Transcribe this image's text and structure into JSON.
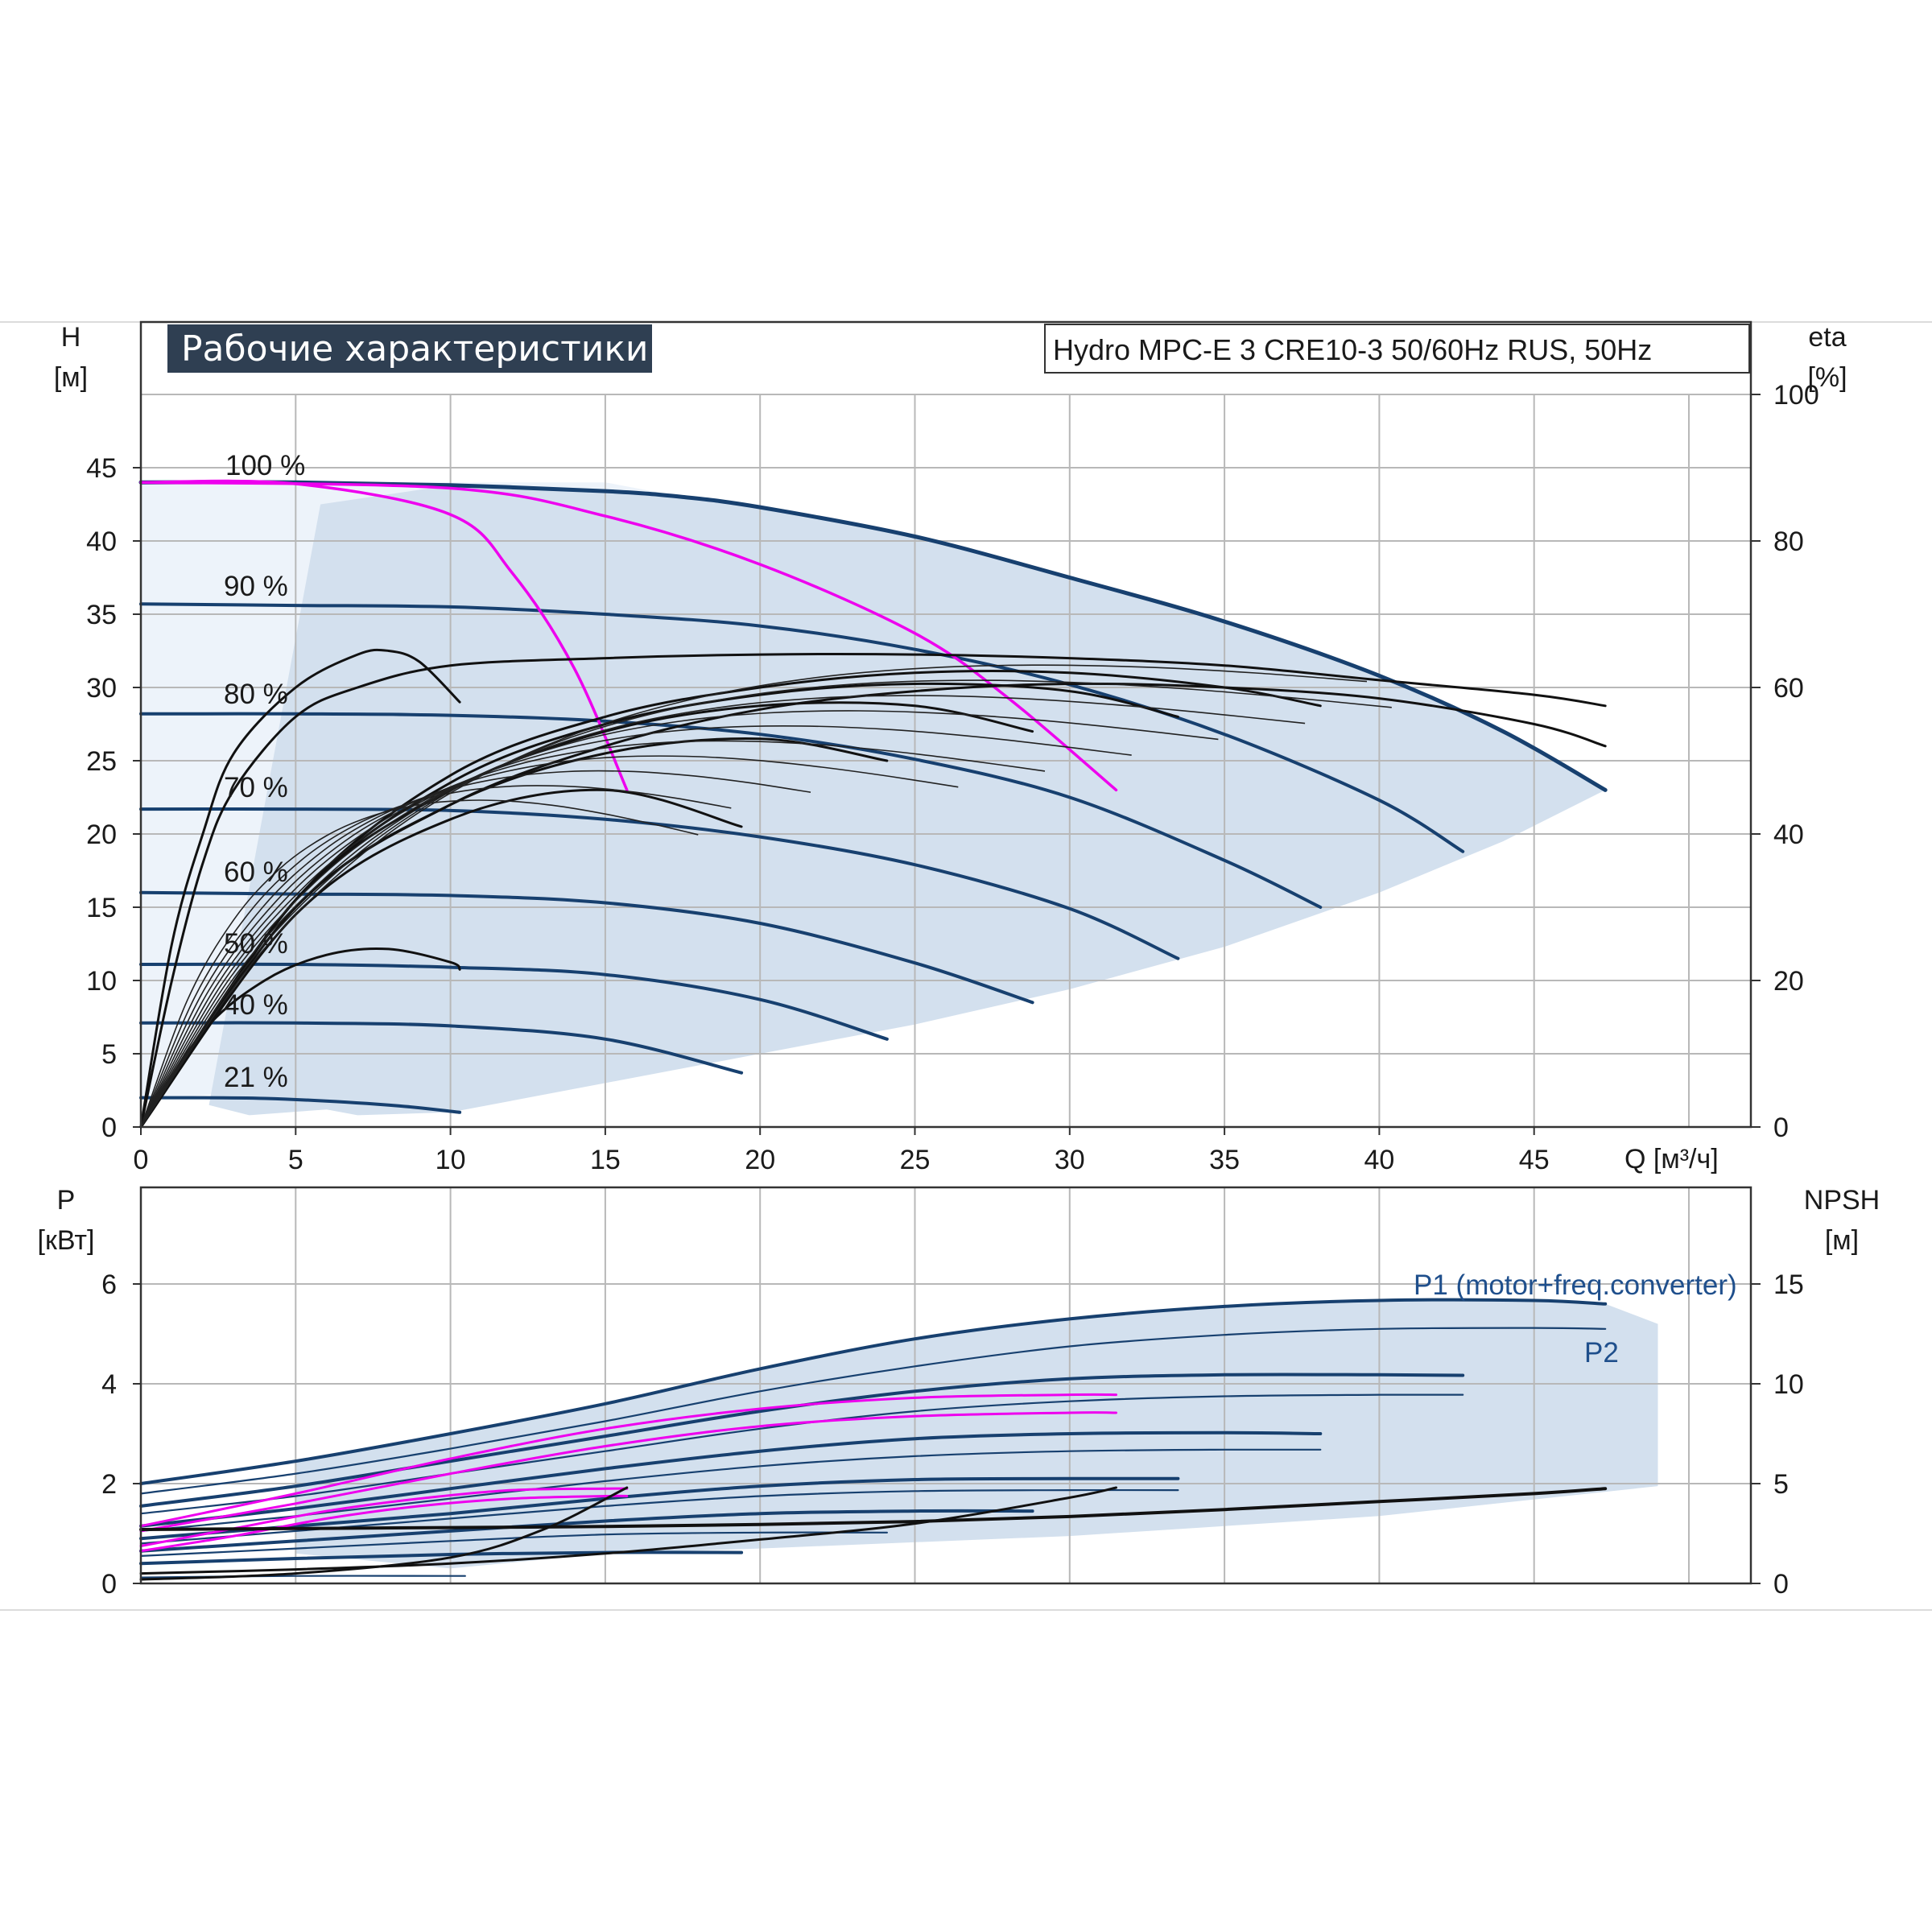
{
  "header": {
    "title": "Рабочие характеристики",
    "model": "Hydro MPC-E 3 CRE10-3 50/60Hz RUS, 50Hz"
  },
  "colors": {
    "curve": "#17406f",
    "curve_thin": "#2a4f7a",
    "magenta": "#ee00ee",
    "efficiency": "#111111",
    "shade": "#d3e0ee",
    "shade_light": "#edf3fa",
    "grid": "#b8b8b8",
    "title_bg": "#2f3f52"
  },
  "top_axes": {
    "left_label": "H",
    "left_unit": "[м]",
    "right_label": "eta",
    "right_unit": "[%]",
    "x_label": "Q [м³/ч]",
    "x_ticks": [
      "0",
      "5",
      "10",
      "15",
      "20",
      "25",
      "30",
      "35",
      "40",
      "45"
    ],
    "y_ticks": [
      "0",
      "5",
      "10",
      "15",
      "20",
      "25",
      "30",
      "35",
      "40",
      "45"
    ],
    "right_ticks": [
      "0",
      "20",
      "40",
      "60",
      "80",
      "100"
    ]
  },
  "bottom_axes": {
    "left_label": "P",
    "left_unit": "[кВт]",
    "right_label": "NPSH",
    "right_unit": "[м]",
    "y_ticks": [
      "0",
      "2",
      "4",
      "6"
    ],
    "right_ticks": [
      "0",
      "5",
      "10",
      "15"
    ]
  },
  "speed_labels": [
    "100 %",
    "90 %",
    "80 %",
    "70 %",
    "60 %",
    "50 %",
    "40 %",
    "21 %"
  ],
  "power_legend": {
    "p1": "P1 (motor+freq.converter)",
    "p2": "P2"
  },
  "chart_data": [
    {
      "type": "line",
      "xlabel": "Q [м³/ч]",
      "ylabel": "H [м]",
      "y2label": "eta [%]",
      "xlim": [
        0,
        52
      ],
      "ylim": [
        0,
        50
      ],
      "y2lim": [
        0,
        100
      ],
      "grid": true,
      "series": [
        {
          "name": "100 %",
          "x": [
            0,
            5,
            10,
            15,
            17.5,
            20,
            25,
            30,
            35,
            40,
            44,
            47.3
          ],
          "y": [
            44.0,
            44.0,
            43.8,
            43.4,
            43.0,
            42.3,
            40.3,
            37.5,
            34.5,
            30.8,
            27.0,
            23.0
          ]
        },
        {
          "name": "90 %",
          "x": [
            0,
            5,
            10,
            15,
            20,
            25,
            30,
            35,
            40,
            42.7
          ],
          "y": [
            35.7,
            35.6,
            35.5,
            35.0,
            34.2,
            32.6,
            30.2,
            26.8,
            22.3,
            18.8
          ]
        },
        {
          "name": "80 %",
          "x": [
            0,
            5,
            10,
            15,
            20,
            25,
            30,
            35,
            38.1
          ],
          "y": [
            28.2,
            28.2,
            28.1,
            27.7,
            26.8,
            25.1,
            22.5,
            18.2,
            15.0
          ]
        },
        {
          "name": "70 %",
          "x": [
            0,
            5,
            10,
            15,
            20,
            25,
            30,
            33.5
          ],
          "y": [
            21.7,
            21.7,
            21.6,
            21.0,
            19.8,
            17.9,
            14.9,
            11.5
          ]
        },
        {
          "name": "60 %",
          "x": [
            0,
            5,
            10,
            15,
            20,
            25,
            28.8
          ],
          "y": [
            16.0,
            15.9,
            15.8,
            15.3,
            13.9,
            11.2,
            8.5
          ]
        },
        {
          "name": "50 %",
          "x": [
            0,
            5,
            10,
            15,
            20,
            24.1
          ],
          "y": [
            11.1,
            11.1,
            10.9,
            10.4,
            8.7,
            6.0
          ]
        },
        {
          "name": "40 %",
          "x": [
            0,
            5,
            10,
            15,
            19.4
          ],
          "y": [
            7.1,
            7.1,
            6.9,
            6.0,
            3.7
          ]
        },
        {
          "name": "21 %",
          "x": [
            0,
            4,
            8,
            10.3
          ],
          "y": [
            2.0,
            1.95,
            1.5,
            1.0
          ]
        },
        {
          "x": [
            0,
            5,
            10,
            12,
            14,
            15.7
          ],
          "y": [
            44.0,
            43.9,
            41.8,
            37.8,
            31.3,
            23.0
          ]
        },
        {
          "x": [
            0,
            10,
            15,
            20,
            25,
            28,
            31.5
          ],
          "y": [
            44.0,
            43.6,
            41.7,
            38.4,
            33.7,
            29.3,
            23.0
          ]
        },
        {
          "x": [
            0,
            1,
            2,
            3,
            5,
            7,
            10,
            15,
            20,
            25,
            30,
            35,
            40,
            45,
            47.3
          ],
          "y2": [
            0,
            20,
            36,
            46,
            56,
            60,
            63,
            64,
            64.5,
            64.5,
            64,
            63,
            61,
            59,
            57.5
          ]
        },
        {
          "x": [
            0,
            5,
            10,
            15,
            20,
            25,
            30,
            35,
            40,
            45,
            47.3
          ],
          "y2": [
            0,
            30,
            44,
            52,
            57,
            59.5,
            60.5,
            60,
            58.5,
            55,
            52
          ]
        },
        {
          "x": [
            0,
            2,
            4,
            6,
            8,
            10,
            10.3
          ],
          "y2": [
            0,
            13,
            20,
            23.5,
            24.3,
            22.5,
            21.5
          ]
        },
        {
          "x": [
            0,
            1,
            2,
            3,
            5,
            7,
            8,
            9,
            10.3
          ],
          "y2": [
            0,
            25,
            40,
            51,
            60,
            64.5,
            65,
            63.5,
            58
          ]
        },
        {
          "x": [
            0,
            5,
            10,
            15,
            19.4
          ],
          "y2": [
            0,
            29,
            42,
            46,
            41
          ]
        },
        {
          "x": [
            0,
            5,
            10,
            15,
            20,
            24.1
          ],
          "y2": [
            0,
            30,
            44,
            51,
            53,
            50
          ]
        },
        {
          "x": [
            0,
            5,
            10,
            15,
            20,
            25,
            28.8
          ],
          "y2": [
            0,
            31,
            46,
            54,
            57.5,
            57.5,
            54
          ]
        },
        {
          "x": [
            0,
            5,
            10,
            15,
            20,
            25,
            30,
            33.5
          ],
          "y2": [
            0,
            31,
            47,
            55,
            59,
            60.5,
            59.5,
            56
          ]
        },
        {
          "x": [
            0,
            5,
            10,
            15,
            20,
            25,
            30,
            35,
            38.1
          ],
          "y2": [
            0,
            31,
            48,
            56,
            60,
            62,
            62,
            60,
            57.5
          ]
        }
      ]
    },
    {
      "type": "line",
      "ylabel": "P [кВт]",
      "y2label": "NPSH [м]",
      "xlim": [
        0,
        52
      ],
      "ylim": [
        0,
        8
      ],
      "y2lim": [
        0,
        20
      ],
      "grid": true,
      "series": [
        {
          "name": "P1 (motor+freq.converter)",
          "x": [
            0,
            5,
            10,
            15,
            20,
            25,
            30,
            35,
            40,
            45,
            47.3
          ],
          "y": [
            2.0,
            2.45,
            3.0,
            3.6,
            4.3,
            4.9,
            5.3,
            5.55,
            5.67,
            5.67,
            5.6
          ]
        },
        {
          "name": "P2",
          "x": [
            0,
            5,
            10,
            15,
            20,
            25,
            30,
            35,
            40,
            45,
            47.3
          ],
          "y": [
            1.8,
            2.2,
            2.7,
            3.25,
            3.85,
            4.35,
            4.75,
            4.98,
            5.1,
            5.12,
            5.1
          ]
        },
        {
          "x": [
            0,
            5,
            10,
            15,
            20,
            25,
            30,
            35,
            40,
            42.7
          ],
          "y": [
            1.55,
            1.95,
            2.45,
            2.95,
            3.45,
            3.85,
            4.1,
            4.18,
            4.18,
            4.17
          ]
        },
        {
          "x": [
            0,
            5,
            10,
            15,
            20,
            25,
            30,
            35,
            40,
            42.7
          ],
          "y": [
            1.4,
            1.75,
            2.2,
            2.65,
            3.1,
            3.45,
            3.65,
            3.75,
            3.78,
            3.78
          ]
        },
        {
          "x": [
            0,
            5,
            10,
            15,
            20,
            25,
            30,
            35,
            38.1
          ],
          "y": [
            1.15,
            1.5,
            1.9,
            2.3,
            2.65,
            2.9,
            3.0,
            3.02,
            3.0
          ]
        },
        {
          "x": [
            0,
            5,
            10,
            15,
            20,
            25,
            30,
            35,
            38.1
          ],
          "y": [
            1.05,
            1.35,
            1.7,
            2.05,
            2.35,
            2.55,
            2.65,
            2.68,
            2.68
          ]
        },
        {
          "x": [
            0,
            5,
            10,
            15,
            20,
            25,
            30,
            33.5
          ],
          "y": [
            0.9,
            1.15,
            1.4,
            1.7,
            1.95,
            2.08,
            2.1,
            2.1
          ]
        },
        {
          "x": [
            0,
            5,
            10,
            15,
            20,
            25,
            30,
            33.5
          ],
          "y": [
            0.8,
            1.05,
            1.3,
            1.55,
            1.75,
            1.85,
            1.87,
            1.87
          ]
        },
        {
          "x": [
            0,
            5,
            10,
            15,
            20,
            25,
            28.8
          ],
          "y": [
            0.65,
            0.85,
            1.05,
            1.25,
            1.4,
            1.45,
            1.45
          ]
        },
        {
          "x": [
            0,
            5,
            10,
            15,
            20,
            24.1
          ],
          "y": [
            0.55,
            0.7,
            0.85,
            0.98,
            1.02,
            1.02
          ]
        },
        {
          "x": [
            0,
            5,
            10,
            15,
            19.4
          ],
          "y": [
            0.4,
            0.5,
            0.58,
            0.62,
            0.62
          ]
        },
        {
          "x": [
            0,
            5,
            10,
            10.3
          ],
          "y": [
            0.12,
            0.15,
            0.15,
            0.15
          ]
        },
        {
          "x": [
            0,
            5,
            10,
            15,
            20,
            25,
            30,
            31.5
          ],
          "y": [
            1.15,
            1.8,
            2.5,
            3.1,
            3.5,
            3.72,
            3.78,
            3.78
          ]
        },
        {
          "x": [
            0,
            5,
            10,
            15,
            20,
            25,
            30,
            31.5
          ],
          "y": [
            1.05,
            1.6,
            2.2,
            2.75,
            3.15,
            3.35,
            3.42,
            3.42
          ]
        },
        {
          "x": [
            0,
            3,
            6,
            9,
            12,
            15,
            15.7
          ],
          "y": [
            0.75,
            1.1,
            1.45,
            1.7,
            1.87,
            1.9,
            1.9
          ]
        },
        {
          "x": [
            0,
            3,
            6,
            9,
            12,
            15,
            15.7
          ],
          "y": [
            0.65,
            0.95,
            1.3,
            1.55,
            1.7,
            1.75,
            1.75
          ]
        },
        {
          "x": [
            0,
            5,
            10,
            15,
            20,
            25,
            30,
            35,
            40,
            45,
            47.3
          ],
          "y2": [
            2.7,
            2.75,
            2.8,
            2.85,
            2.95,
            3.1,
            3.35,
            3.7,
            4.1,
            4.5,
            4.75
          ]
        },
        {
          "x": [
            0,
            5,
            10,
            15,
            20,
            25,
            30,
            31.5
          ],
          "y2": [
            0.5,
            0.7,
            1.0,
            1.5,
            2.2,
            3.0,
            4.3,
            4.8
          ]
        },
        {
          "x": [
            0,
            5,
            10,
            13,
            15.7
          ],
          "y2": [
            0.2,
            0.5,
            1.3,
            2.7,
            4.8
          ]
        }
      ]
    }
  ]
}
